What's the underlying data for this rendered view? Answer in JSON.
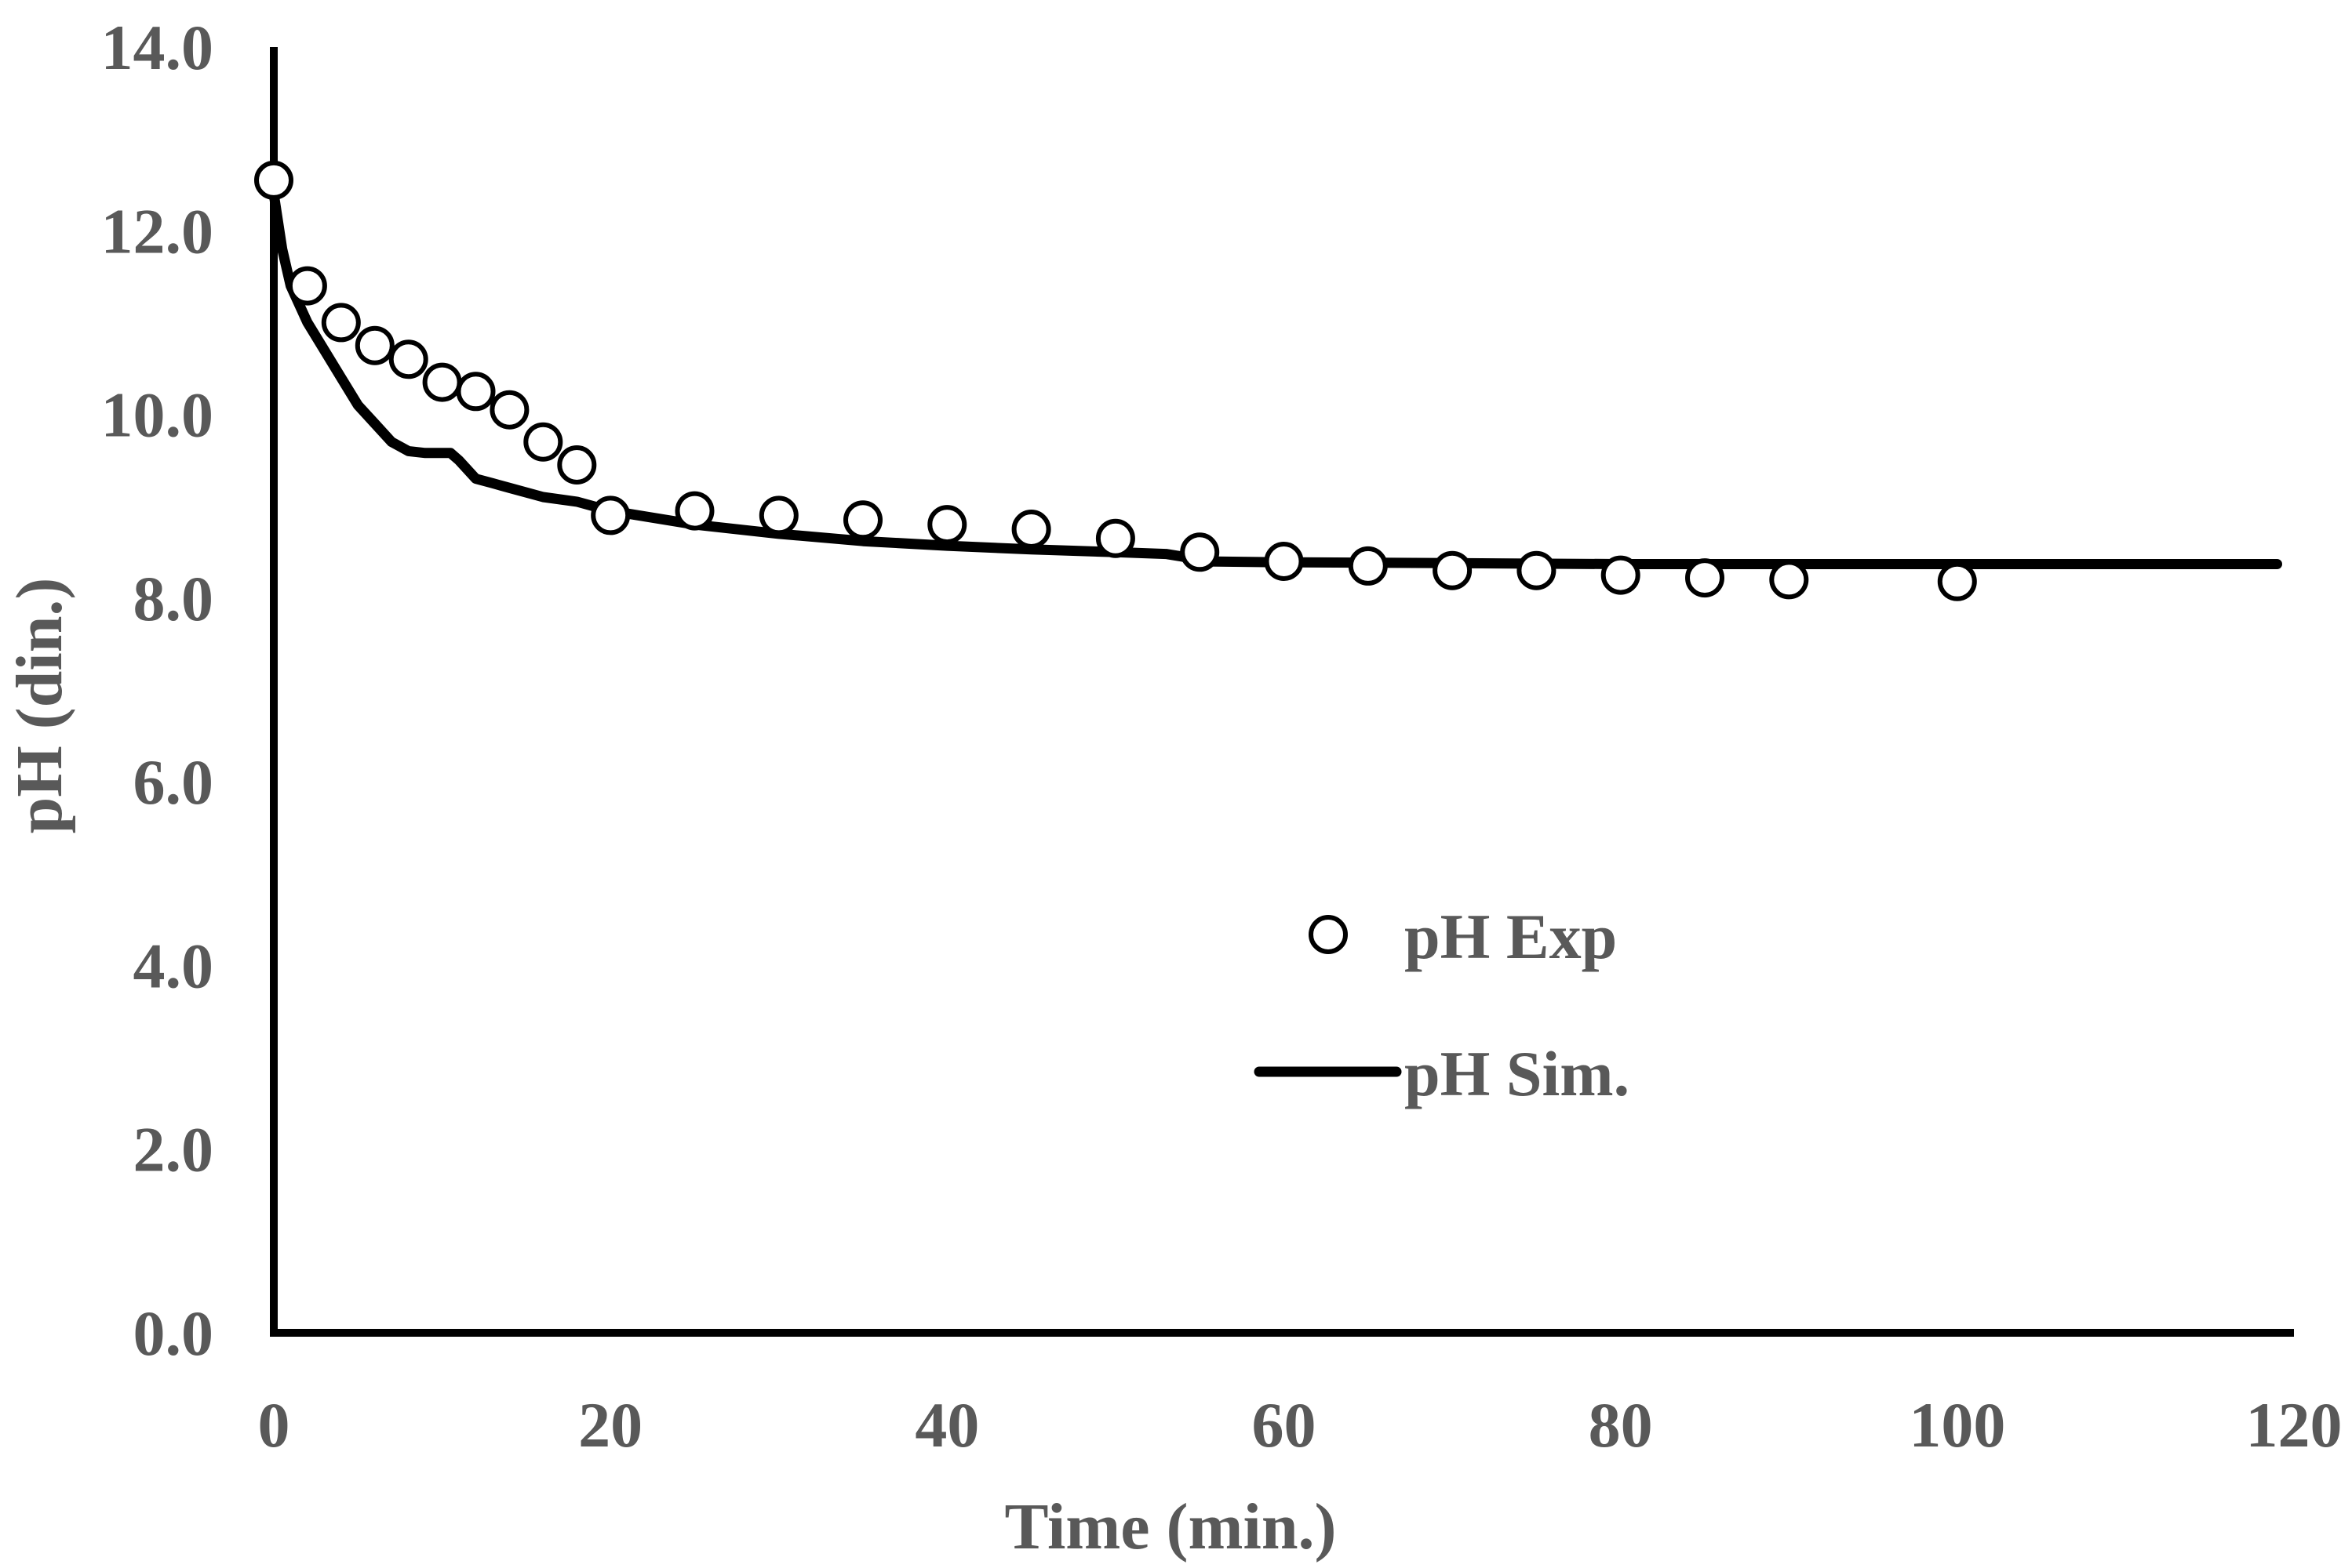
{
  "chart_data": {
    "type": "scatter",
    "title": "",
    "xlabel": "Time (min.)",
    "ylabel": "pH (din.)",
    "xlim": [
      0,
      120
    ],
    "ylim": [
      0,
      14
    ],
    "xticks": [
      0,
      20,
      40,
      60,
      80,
      100,
      120
    ],
    "yticks": [
      0,
      2,
      4,
      6,
      8,
      10,
      12,
      14
    ],
    "xtick_labels": [
      "0",
      "20",
      "40",
      "60",
      "80",
      "100",
      "120"
    ],
    "ytick_labels": [
      "0.0",
      "2.0",
      "4.0",
      "6.0",
      "8.0",
      "10.0",
      "12.0",
      "14.0"
    ],
    "grid": false,
    "legend_position": "center-right",
    "series": [
      {
        "name": "pH Exp",
        "kind": "markers",
        "marker": "open-circle",
        "x": [
          0,
          2,
          4,
          6,
          8,
          10,
          12,
          14,
          16,
          18,
          20,
          25,
          30,
          35,
          40,
          45,
          50,
          55,
          60,
          65,
          70,
          75,
          80,
          85,
          90,
          100
        ],
        "y": [
          12.55,
          11.4,
          11.0,
          10.75,
          10.6,
          10.35,
          10.25,
          10.05,
          9.7,
          9.45,
          8.9,
          8.95,
          8.9,
          8.85,
          8.8,
          8.75,
          8.65,
          8.5,
          8.4,
          8.35,
          8.3,
          8.3,
          8.25,
          8.22,
          8.2,
          8.18
        ]
      },
      {
        "name": "pH Sim.",
        "kind": "line",
        "x": [
          0,
          0.5,
          1,
          2,
          3,
          4,
          5,
          6,
          7,
          8,
          9,
          10,
          10.5,
          11,
          12,
          13,
          14,
          16,
          18,
          20,
          25,
          30,
          35,
          40,
          45,
          50,
          53,
          54,
          55,
          60,
          70,
          80,
          90,
          100,
          110,
          119
        ],
        "y": [
          12.4,
          11.8,
          11.4,
          11.0,
          10.7,
          10.4,
          10.1,
          9.9,
          9.7,
          9.6,
          9.58,
          9.58,
          9.58,
          9.5,
          9.3,
          9.25,
          9.2,
          9.1,
          9.05,
          8.95,
          8.8,
          8.7,
          8.62,
          8.57,
          8.53,
          8.5,
          8.48,
          8.45,
          8.4,
          8.39,
          8.38,
          8.37,
          8.37,
          8.37,
          8.37,
          8.37
        ]
      }
    ]
  }
}
